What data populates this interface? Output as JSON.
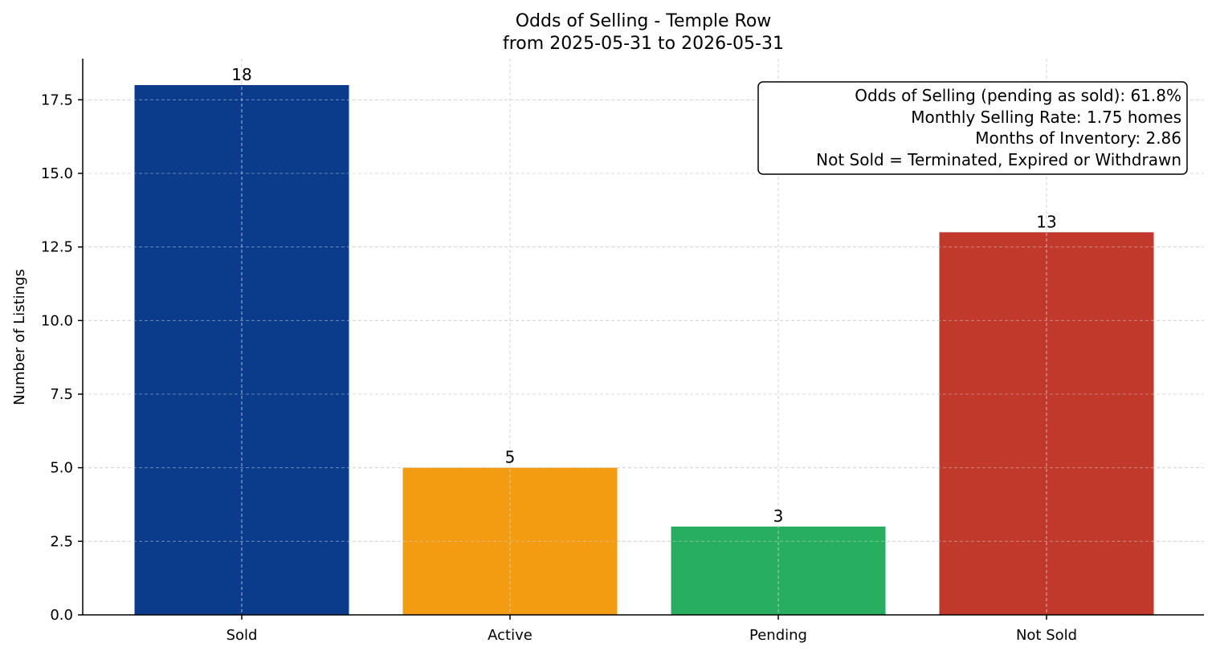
{
  "chart_data": {
    "type": "bar",
    "title_lines": [
      "Odds of Selling - Temple Row",
      "from 2025-05-31 to 2026-05-31"
    ],
    "xlabel": "",
    "ylabel": "Number of Listings",
    "categories": [
      "Sold",
      "Active",
      "Pending",
      "Not Sold"
    ],
    "values": [
      18,
      5,
      3,
      13
    ],
    "value_labels": [
      "18",
      "5",
      "3",
      "13"
    ],
    "colors": [
      "#0b3c8c",
      "#f39c12",
      "#27ae60",
      "#c0392b"
    ],
    "ylim": [
      0,
      18.9
    ],
    "yticks": [
      0,
      2.5,
      5,
      7.5,
      10,
      12.5,
      15,
      17.5
    ],
    "ytick_labels": [
      "0.0",
      "2.5",
      "5.0",
      "7.5",
      "10.0",
      "12.5",
      "15.0",
      "17.5"
    ],
    "grid": true,
    "annotation_placement": "top-right",
    "annotation_lines": [
      "Odds of Selling (pending as sold): 61.8%",
      "Monthly Selling Rate: 1.75 homes",
      "Months of Inventory: 2.86",
      "Not Sold = Terminated, Expired or Withdrawn"
    ]
  }
}
